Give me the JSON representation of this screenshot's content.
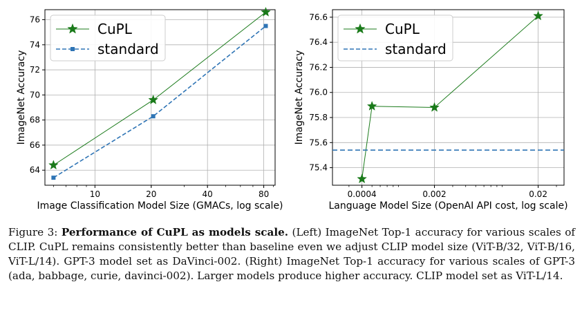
{
  "chart_data": [
    {
      "type": "line",
      "title": "",
      "xlabel": "Image Classification Model Size (GMACs, log scale)",
      "ylabel": "ImageNet Accuracy",
      "xscale": "log",
      "xlim": [
        5.4,
        92
      ],
      "ylim": [
        62.8,
        76.8
      ],
      "xticks": [
        10,
        20,
        40,
        80
      ],
      "yticks": [
        64,
        66,
        68,
        70,
        72,
        74,
        76
      ],
      "grid": true,
      "legend": "top-left",
      "series": [
        {
          "name": "CuPL",
          "x": [
            6,
            20.5,
            82
          ],
          "values": [
            64.4,
            69.6,
            76.6
          ],
          "color": "#1a7a1a",
          "marker": "star",
          "linestyle": "solid"
        },
        {
          "name": "standard",
          "x": [
            6,
            20.5,
            82
          ],
          "values": [
            63.4,
            68.3,
            75.5
          ],
          "color": "#2e74b5",
          "marker": "square",
          "linestyle": "dashed"
        }
      ]
    },
    {
      "type": "line",
      "title": "",
      "xlabel": "Language Model Size (OpenAI API cost, log scale)",
      "ylabel": "ImageNet Accuracy",
      "xscale": "log",
      "xlim": [
        0.000208,
        0.0355
      ],
      "ylim": [
        75.26,
        76.66
      ],
      "xticks": [
        0.0004,
        0.002,
        0.02
      ],
      "xticklabels": [
        "0.0004",
        "0.002",
        "0.02"
      ],
      "yticks": [
        75.4,
        75.6,
        75.8,
        76.0,
        76.2,
        76.4,
        76.6
      ],
      "yticklabels": [
        "75.4",
        "75.6",
        "75.8",
        "76.0",
        "76.2",
        "76.4",
        "76.6"
      ],
      "grid": true,
      "legend": "top-left",
      "series": [
        {
          "name": "CuPL",
          "x": [
            0.0004,
            0.0005,
            0.002,
            0.02
          ],
          "values": [
            75.31,
            75.89,
            75.88,
            76.61
          ],
          "color": "#1a7a1a",
          "marker": "star",
          "linestyle": "solid"
        },
        {
          "name": "standard",
          "baseline": 75.54,
          "color": "#2e74b5",
          "linestyle": "dashed"
        }
      ]
    }
  ],
  "caption": {
    "prefix": "Figure 3: ",
    "bold": "Performance of CuPL as models scale.",
    "body": " (Left) ImageNet Top-1 accuracy for various scales of CLIP. CuPL remains consistently better than baseline even we adjust CLIP model size (ViT-B/32, ViT-B/16, ViT-L/14). GPT-3 model set as DaVinci-002. (Right) ImageNet Top-1 accuracy for various scales of GPT-3 (ada, babbage, curie, davinci-002). Larger models produce higher accuracy. CLIP model set as ViT-L/14."
  }
}
